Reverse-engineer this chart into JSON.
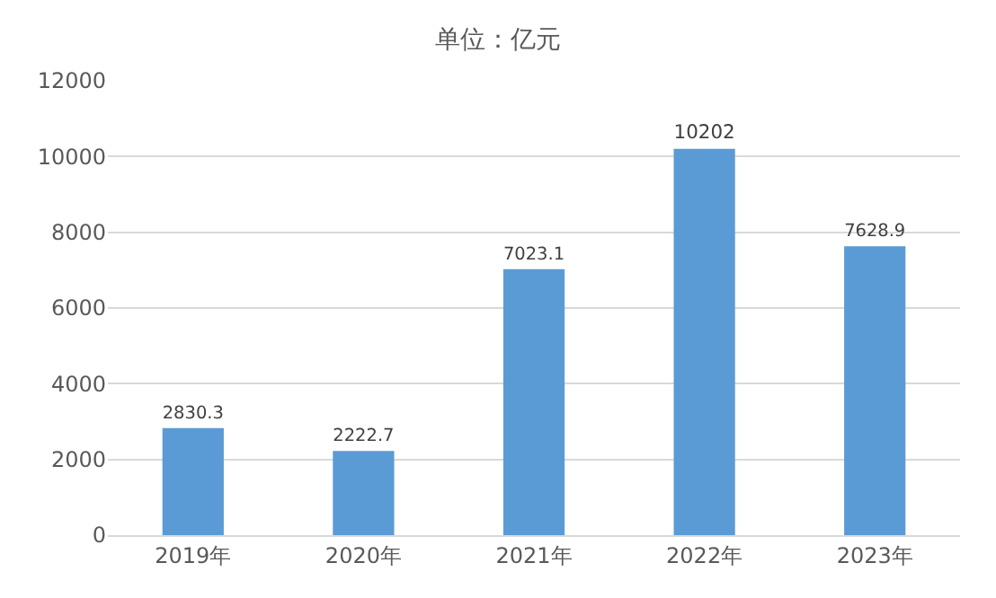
{
  "chart_data": {
    "type": "bar",
    "title": "单位：亿元",
    "categories": [
      "2019年",
      "2020年",
      "2021年",
      "2022年",
      "2023年"
    ],
    "values": [
      2830.3,
      2222.7,
      7023.1,
      10202,
      7628.9
    ],
    "color": "#5b9bd5",
    "ylim": [
      0,
      12000
    ],
    "yticks": [
      0,
      2000,
      4000,
      6000,
      8000,
      10000,
      12000
    ],
    "grid": "y",
    "data_labels": true
  }
}
